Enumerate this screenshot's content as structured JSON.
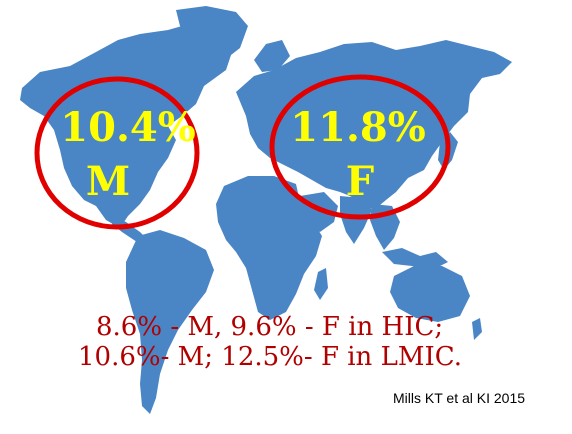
{
  "colors": {
    "land": "#4a86c5",
    "highlight_ring": "#e00000",
    "stat_text": "#ffff00",
    "summary_text": "#b00000",
    "citation_text": "#000000"
  },
  "regions": {
    "north_america": {
      "percent": "10.4%",
      "sex": "M"
    },
    "eurasia": {
      "percent": "11.8%",
      "sex": "F"
    }
  },
  "summary": {
    "line1": "8.6% -  M, 9.6% -  F in HIC;",
    "line2": "10.6%- M; 12.5%-  F in LMIC."
  },
  "citation": "Mills KT et al  KI 2015"
}
